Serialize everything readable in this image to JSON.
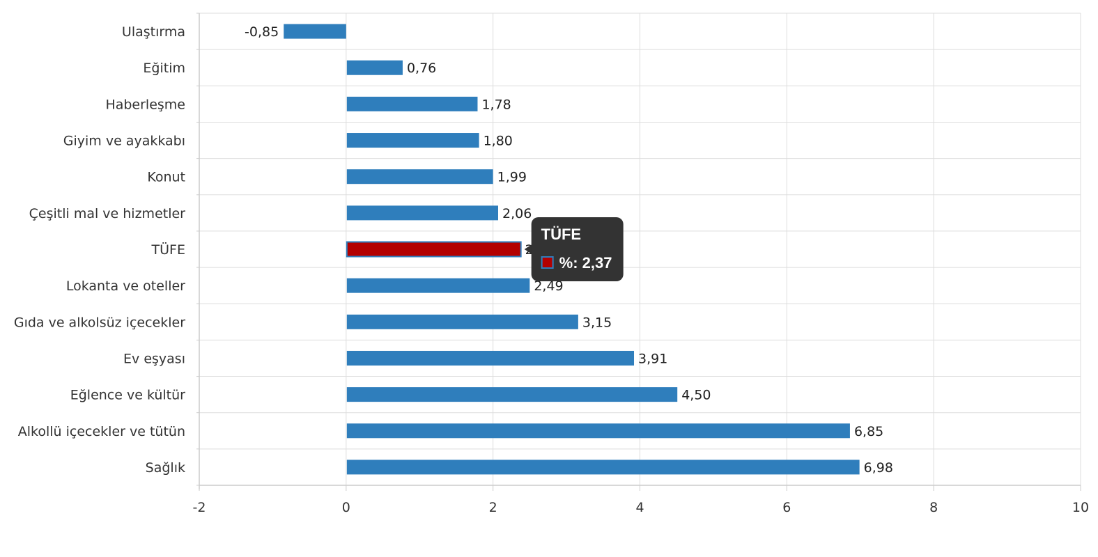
{
  "chart_data": {
    "type": "bar",
    "orientation": "horizontal",
    "categories": [
      "Ulaştırma",
      "Eğitim",
      "Haberleşme",
      "Giyim ve ayakkabı",
      "Konut",
      "Çeşitli mal ve hizmetler",
      "TÜFE",
      "Lokanta ve oteller",
      "Gıda ve alkolsüz içecekler",
      "Ev eşyası",
      "Eğlence ve kültür",
      "Alkollü içecekler ve tütün",
      "Sağlık"
    ],
    "values": [
      -0.85,
      0.76,
      1.78,
      1.8,
      1.99,
      2.06,
      2.37,
      2.49,
      3.15,
      3.91,
      4.5,
      6.85,
      6.98
    ],
    "value_labels": [
      "-0,85",
      "0,76",
      "1,78",
      "1,80",
      "1,99",
      "2,06",
      "2,37",
      "2,49",
      "3,15",
      "3,91",
      "4,50",
      "6,85",
      "6,98"
    ],
    "highlight_category": "TÜFE",
    "xlim": [
      -2,
      10
    ],
    "x_ticks": [
      -2,
      0,
      2,
      4,
      6,
      8,
      10
    ],
    "x_tick_labels": [
      "-2",
      "0",
      "2",
      "4",
      "6",
      "8",
      "10"
    ],
    "grid": true,
    "title": "",
    "xlabel": "",
    "ylabel": "",
    "colors": {
      "bar": "#2f7ebc",
      "highlight": "#b30000",
      "grid": "#dddddd",
      "tooltip_bg": "#333333"
    },
    "tooltip": {
      "title": "TÜFE",
      "value_text": "%: 2,37"
    }
  }
}
